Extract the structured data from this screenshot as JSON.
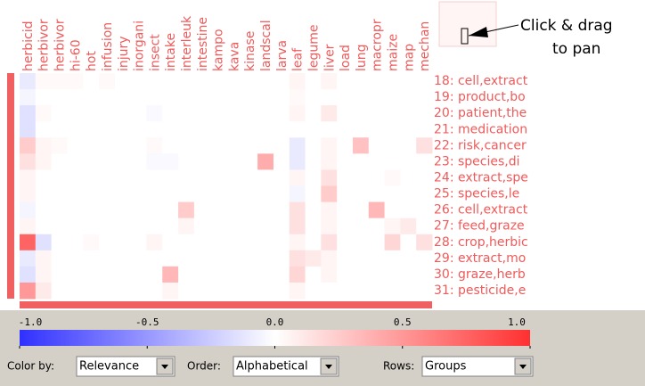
{
  "heatmap": {
    "columns": [
      "herbicid",
      "herbivor",
      "herbivor",
      "hi-60",
      "hot",
      "infusion",
      "injury",
      "inorgani",
      "insect",
      "intake",
      "interleuk",
      "intestine",
      "kampo",
      "kava",
      "kinase",
      "landscal",
      "larva",
      "leaf",
      "legume",
      "liver",
      "load",
      "lung",
      "macropr",
      "maize",
      "map",
      "mechan"
    ],
    "rows": [
      "18: cell,extract",
      "19: product,bo",
      "20: patient,the",
      "21: medication",
      "22: risk,cancer",
      "23: species,di",
      "24: extract,spe",
      "25: species,le",
      "26: cell,extract",
      "27: feed,graze",
      "28: crop,herbic",
      "29: extract,mo",
      "30: graze,herb",
      "31: pesticide,e"
    ],
    "values": [
      [
        -0.1,
        0.03,
        0.03,
        0.03,
        0,
        0.03,
        0,
        0,
        0,
        0,
        0,
        0,
        0,
        0,
        0,
        0,
        0,
        0.05,
        0,
        0.05,
        0,
        0,
        0,
        0,
        0,
        0
      ],
      [
        -0.05,
        0,
        0,
        0,
        0,
        0,
        0,
        0,
        0,
        0,
        0,
        0,
        0,
        0,
        0,
        0,
        0,
        0.03,
        0,
        0,
        0,
        0,
        0,
        0,
        0,
        0
      ],
      [
        -0.15,
        0.03,
        0,
        0,
        0,
        0,
        0,
        0,
        -0.03,
        0,
        0,
        0,
        0,
        0,
        0,
        0,
        0,
        0.05,
        0,
        0.1,
        0,
        0,
        0,
        0,
        0,
        0
      ],
      [
        -0.15,
        0,
        0,
        0,
        0,
        0,
        0,
        0,
        0,
        0,
        0,
        0,
        0,
        0,
        0,
        0,
        0,
        0,
        0,
        0,
        0,
        0,
        0,
        0,
        0,
        0
      ],
      [
        0.25,
        0.05,
        0.03,
        0,
        0,
        0,
        0,
        0,
        0.03,
        0,
        0,
        0,
        0,
        0,
        0,
        0,
        0,
        -0.1,
        0,
        0.05,
        0,
        0.3,
        0,
        0,
        0,
        0.15
      ],
      [
        0.15,
        0.05,
        0,
        0,
        0,
        0,
        0,
        0,
        -0.03,
        -0.03,
        0,
        0,
        0,
        0,
        0,
        0.4,
        0,
        -0.1,
        0,
        0.05,
        0,
        0,
        0,
        0,
        0,
        0
      ],
      [
        0.05,
        0,
        0,
        0,
        0,
        0,
        0,
        0,
        0,
        0,
        0,
        0,
        0,
        0,
        0,
        0,
        0,
        0.05,
        0,
        0.15,
        0,
        0,
        0,
        0.03,
        0,
        0
      ],
      [
        0.05,
        0,
        0,
        0,
        0,
        0,
        0,
        0,
        0,
        0,
        0,
        0,
        0,
        0,
        0,
        0,
        0,
        -0.05,
        0,
        0.25,
        0,
        0,
        0,
        0,
        0,
        0
      ],
      [
        -0.05,
        0,
        0,
        0,
        0,
        0,
        0,
        0,
        0,
        0,
        0.25,
        0,
        0,
        0,
        0,
        0,
        0,
        0.15,
        0,
        0.05,
        0,
        0,
        0.35,
        0,
        0,
        0
      ],
      [
        0.05,
        0,
        0,
        0,
        0,
        0,
        0,
        0,
        0,
        0,
        0.05,
        0,
        0,
        0,
        0,
        0,
        0,
        0.15,
        0,
        0.05,
        0,
        0,
        0,
        0.05,
        0.1,
        0
      ],
      [
        0.75,
        -0.15,
        0,
        0,
        0.03,
        0,
        0,
        0,
        0.05,
        0,
        0,
        0,
        0,
        0,
        0,
        0,
        0,
        0.05,
        0,
        0.15,
        0,
        0,
        0,
        0.2,
        0,
        0.15
      ],
      [
        -0.1,
        0.05,
        0,
        0,
        0,
        0,
        0,
        0,
        0,
        0,
        0,
        0,
        0,
        0,
        0,
        0,
        0,
        0.15,
        0.1,
        0.05,
        0,
        0,
        0,
        0,
        0,
        0
      ],
      [
        -0.15,
        0.05,
        0,
        0,
        0,
        0,
        0,
        0,
        0,
        0.35,
        0,
        0,
        0,
        0,
        0,
        0,
        0,
        0.2,
        0,
        0.05,
        0,
        0,
        0,
        0,
        0,
        0
      ],
      [
        0.5,
        0.1,
        0,
        0,
        0,
        0,
        0,
        0,
        0,
        0.05,
        0,
        0,
        0,
        0,
        0,
        0,
        0,
        0.05,
        0,
        0,
        0,
        0,
        0,
        0,
        0,
        0
      ]
    ],
    "colorbar": {
      "range": [
        -1,
        1
      ],
      "ticks": [
        {
          "value": -1,
          "label": "-1.0"
        },
        -0.5,
        {
          "value": 0,
          "label": "0.0"
        },
        0.5,
        {
          "value": 1,
          "label": "1.0"
        }
      ]
    }
  },
  "pan_hint": [
    "Click & drag",
    "to pan"
  ],
  "controls": [
    {
      "label": "Color by:",
      "value": "Relevance"
    },
    {
      "label": "Order:",
      "value": "Alphabetical"
    },
    {
      "label": "Rows:",
      "value": "Groups"
    }
  ]
}
